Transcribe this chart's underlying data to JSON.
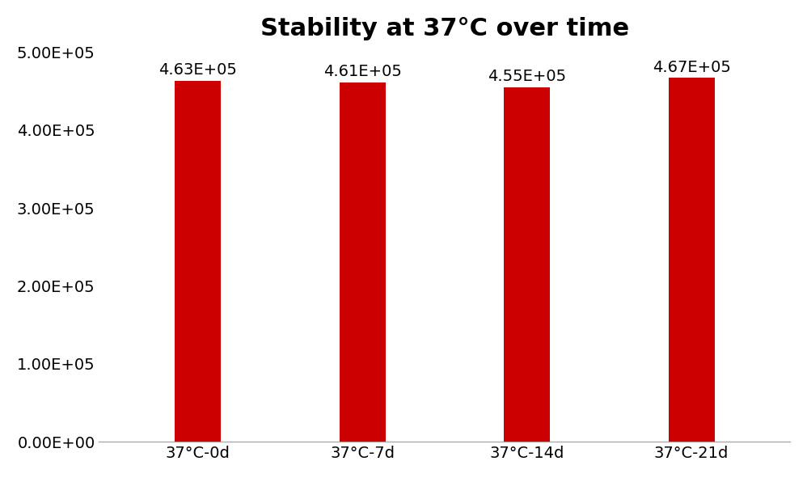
{
  "title": "Stability at 37°C over time",
  "categories": [
    "37°C-0d",
    "37°C-7d",
    "37°C-14d",
    "37°C-21d"
  ],
  "values": [
    463000,
    461000,
    455000,
    467000
  ],
  "bar_labels": [
    "4.63E+05",
    "4.61E+05",
    "4.55E+05",
    "4.67E+05"
  ],
  "bar_color": "#cc0000",
  "ylim": [
    0,
    500000
  ],
  "yticks": [
    0,
    100000,
    200000,
    300000,
    400000,
    500000
  ],
  "ytick_labels": [
    "0.00E+00",
    "1.00E+05",
    "2.00E+05",
    "3.00E+05",
    "4.00E+05",
    "5.00E+05"
  ],
  "title_fontsize": 22,
  "tick_fontsize": 14,
  "bar_label_fontsize": 14,
  "bar_width": 0.28,
  "background_color": "#ffffff"
}
